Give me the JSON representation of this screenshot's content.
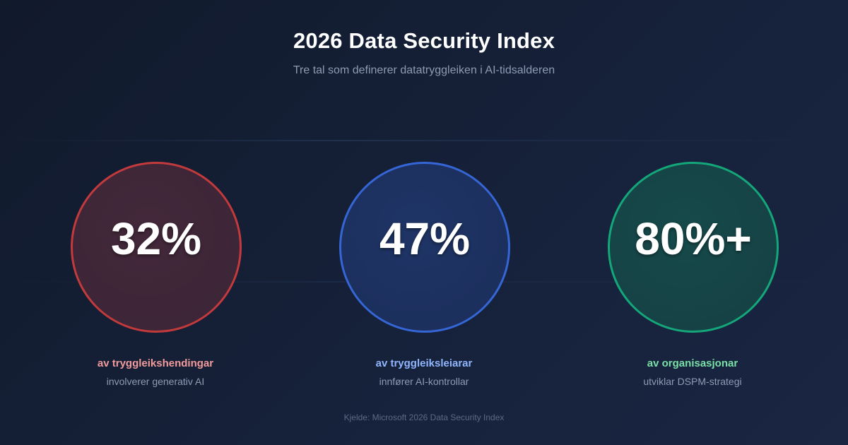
{
  "header": {
    "title": "2026 Data Security Index",
    "subtitle": "Tre tal som definerer datatryggleiken i AI-tidsalderen"
  },
  "stats": [
    {
      "value": "32%",
      "label": "av tryggleikshendingar",
      "description": "involverer generativ AI",
      "color": "#c23a3c"
    },
    {
      "value": "47%",
      "label": "av tryggleiksleiarar",
      "description": "innfører AI-kontrollar",
      "color": "#3566d6"
    },
    {
      "value": "80%+",
      "label": "av organisasjonar",
      "description": "utviklar DSPM-strategi",
      "color": "#13a77a"
    }
  ],
  "footer": {
    "source": "Kjelde: Microsoft 2026 Data Security Index"
  }
}
